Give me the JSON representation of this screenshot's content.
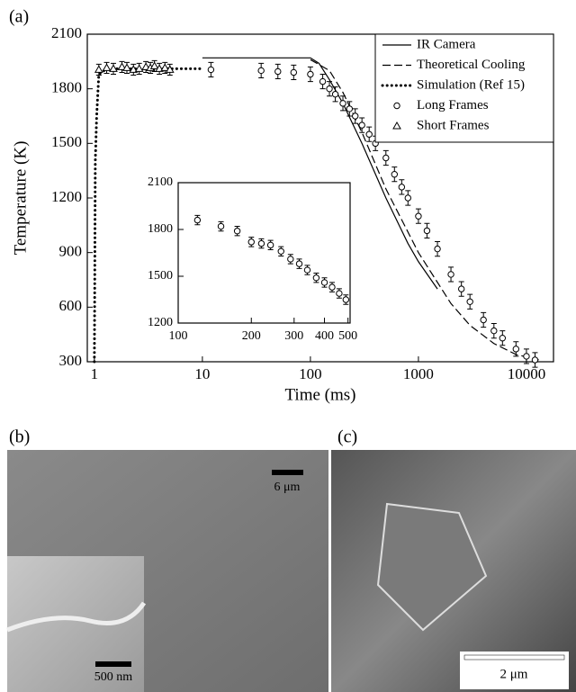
{
  "chart_data": [
    {
      "type": "line",
      "panel_label": "(a)",
      "xlabel": "Time (ms)",
      "ylabel": "Temperature (K)",
      "xscale": "log",
      "xlim": [
        0.86,
        17800
      ],
      "ylim": [
        300,
        2100
      ],
      "xticks": [
        1,
        10,
        100,
        1000,
        10000
      ],
      "yticks": [
        300,
        600,
        900,
        1200,
        1500,
        1800,
        2100
      ],
      "legend": "upper right",
      "series": [
        {
          "name": "IR Camera",
          "style": "solid",
          "color": "#000000",
          "x": [
            10,
            100,
            120,
            150,
            200,
            300,
            500,
            800,
            1000,
            1500
          ],
          "values": [
            1970,
            1970,
            1940,
            1850,
            1720,
            1500,
            1200,
            950,
            850,
            700
          ]
        },
        {
          "name": "Theoretical Cooling",
          "style": "dashed",
          "color": "#000000",
          "x": [
            100,
            150,
            200,
            300,
            500,
            1000,
            2000,
            3000,
            5000,
            8000,
            13000
          ],
          "values": [
            1960,
            1900,
            1780,
            1560,
            1250,
            900,
            620,
            500,
            400,
            340,
            310
          ]
        },
        {
          "name": "Simulation (Ref 15)",
          "style": "dotted",
          "color": "#000000",
          "x": [
            1.0,
            1.02,
            1.05,
            1.1,
            1.3,
            3,
            10
          ],
          "values": [
            300,
            1400,
            1650,
            1880,
            1910,
            1910,
            1910
          ]
        },
        {
          "name": "Long Frames",
          "style": "circle",
          "color": "#000000",
          "error": 40,
          "x": [
            12,
            35,
            50,
            70,
            100,
            130,
            150,
            170,
            200,
            230,
            260,
            300,
            350,
            400,
            500,
            600,
            700,
            800,
            1000,
            1200,
            1500,
            2000,
            2500,
            3000,
            4000,
            5000,
            6000,
            8000,
            10000,
            12000
          ],
          "values": [
            1905,
            1900,
            1895,
            1890,
            1880,
            1840,
            1800,
            1770,
            1720,
            1690,
            1650,
            1600,
            1550,
            1500,
            1420,
            1330,
            1260,
            1200,
            1100,
            1020,
            920,
            780,
            700,
            630,
            530,
            470,
            430,
            370,
            330,
            310
          ]
        },
        {
          "name": "Short Frames",
          "style": "triangle",
          "color": "#000000",
          "error": 30,
          "x": [
            1.1,
            1.3,
            1.5,
            1.8,
            2,
            2.3,
            2.6,
            3,
            3.3,
            3.6,
            4,
            4.5,
            5
          ],
          "values": [
            1905,
            1915,
            1910,
            1920,
            1915,
            1905,
            1910,
            1920,
            1915,
            1925,
            1910,
            1915,
            1905
          ]
        }
      ]
    },
    {
      "type": "line",
      "xscale": "log",
      "xlim": [
        100,
        510
      ],
      "ylim": [
        1200,
        2100
      ],
      "xticks": [
        100,
        200,
        300,
        400,
        500
      ],
      "yticks": [
        1200,
        1500,
        1800,
        2100
      ],
      "series": [
        {
          "style": "circle",
          "color": "#000000",
          "error": 30,
          "x": [
            120,
            150,
            175,
            200,
            220,
            240,
            265,
            290,
            315,
            340,
            370,
            400,
            430,
            460,
            490
          ],
          "values": [
            1860,
            1820,
            1790,
            1720,
            1710,
            1700,
            1660,
            1610,
            1580,
            1540,
            1490,
            1460,
            1430,
            1390,
            1350
          ]
        }
      ]
    }
  ],
  "images": [
    {
      "label": "(b)",
      "scale_bars": [
        "6 μm",
        "500 nm"
      ]
    },
    {
      "label": "(c)",
      "scale_bars": [
        "2 μm"
      ]
    }
  ]
}
